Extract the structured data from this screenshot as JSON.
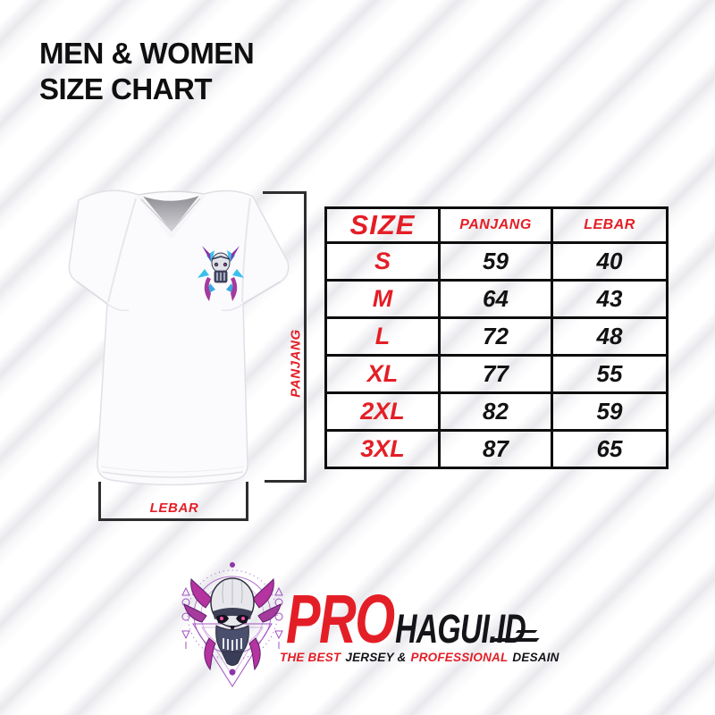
{
  "header": {
    "title_line1": "MEN & WOMEN",
    "title_line2": "SIZE CHART"
  },
  "chart_data": {
    "type": "table",
    "title": "MEN & WOMEN SIZE CHART",
    "columns": [
      "SIZE",
      "PANJANG",
      "LEBAR"
    ],
    "rows": [
      [
        "S",
        "59",
        "40"
      ],
      [
        "M",
        "64",
        "43"
      ],
      [
        "L",
        "72",
        "48"
      ],
      [
        "XL",
        "77",
        "55"
      ],
      [
        "2XL",
        "82",
        "59"
      ],
      [
        "3XL",
        "87",
        "65"
      ]
    ]
  },
  "shirt_diagram": {
    "length_label": "PANJANG",
    "width_label": "LEBAR",
    "chest_emblem_icon": "mecha-skull-emblem-icon"
  },
  "brand": {
    "logo_icon": "mecha-skull-logo-icon",
    "name_primary": "PRO",
    "name_secondary": "HAGUI.ID",
    "tagline": [
      {
        "text": "THE BEST",
        "accent": true
      },
      {
        "text": "JERSEY &",
        "accent": false
      },
      {
        "text": "PROFESSIONAL",
        "accent": true
      },
      {
        "text": "DESAIN",
        "accent": false
      }
    ]
  },
  "colors": {
    "accent_red": "#e41e26",
    "ink": "#111111",
    "stripe_gray": "#eaeaee",
    "line_dark": "#2e2e30",
    "logo_purple": "#a050c0",
    "logo_magenta": "#b5349f",
    "emblem_blue": "#3bc0ee"
  }
}
